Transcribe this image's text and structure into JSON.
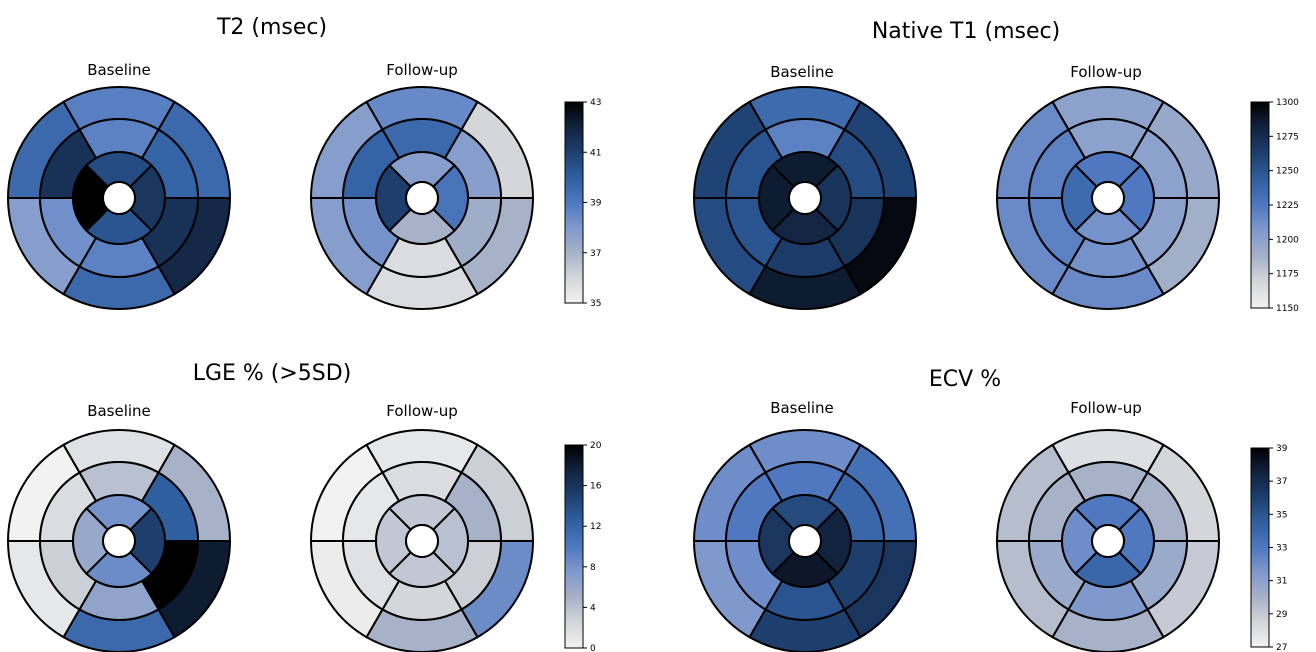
{
  "colors": {
    "scale": [
      "#f2f2f2",
      "#d4d6da",
      "#a7b2c8",
      "#7f99cd",
      "#4f78c0",
      "#2f5f9f",
      "#1e3f6e",
      "#12233f",
      "#000000"
    ],
    "stroke": "#000000",
    "background": "#ffffff"
  },
  "chart_data": [
    {
      "type": "heatmap",
      "subtype": "bullseye-17-segment",
      "title": "T2 (msec)",
      "segment_order": "basal: anterior, anterolateral, inferolateral, inferior, inferoseptal, anteroseptal; mid: same order; apical: anterior, lateral, inferior, septal",
      "colorbar": {
        "ticks": [
          35,
          37,
          39,
          41,
          43
        ],
        "range": [
          35,
          43
        ]
      },
      "maps": [
        {
          "label": "Baseline",
          "basal": [
            38.8,
            39.6,
            41.8,
            39.6,
            37.8,
            39.6
          ],
          "mid": [
            38.7,
            39.8,
            41.5,
            38.7,
            38.3,
            41.5
          ],
          "apical": [
            40.6,
            41.3,
            40.3,
            43.0
          ]
        },
        {
          "label": "Follow-up",
          "basal": [
            38.5,
            36.0,
            37.0,
            35.8,
            37.8,
            37.8
          ],
          "mid": [
            39.6,
            37.8,
            37.2,
            35.8,
            38.2,
            39.8
          ],
          "apical": [
            37.8,
            39.2,
            37.0,
            41.0
          ]
        }
      ]
    },
    {
      "type": "heatmap",
      "subtype": "bullseye-17-segment",
      "title": "Native T1 (msec)",
      "segment_order": "basal: anterior, anterolateral, inferolateral, inferior, inferoseptal, anteroseptal; mid: same order; apical: anterior, lateral, inferior, septal",
      "colorbar": {
        "ticks": [
          1150,
          1175,
          1200,
          1225,
          1250,
          1275,
          1300
        ],
        "range": [
          1150,
          1300
        ]
      },
      "maps": [
        {
          "label": "Baseline",
          "basal": [
            1235,
            1260,
            1295,
            1285,
            1255,
            1260
          ],
          "mid": [
            1220,
            1255,
            1270,
            1265,
            1250,
            1250
          ],
          "apical": [
            1285,
            1270,
            1280,
            1285
          ]
        },
        {
          "label": "Follow-up",
          "basal": [
            1200,
            1195,
            1190,
            1215,
            1215,
            1215
          ],
          "mid": [
            1200,
            1200,
            1200,
            1210,
            1220,
            1220
          ],
          "apical": [
            1225,
            1225,
            1210,
            1235
          ]
        }
      ]
    },
    {
      "type": "heatmap",
      "subtype": "bullseye-17-segment",
      "title": "LGE % (>5SD)",
      "segment_order": "basal: anterior, anterolateral, inferolateral, inferior, inferoseptal, anteroseptal; mid: same order; apical: anterior, lateral, inferior, septal",
      "colorbar": {
        "ticks": [
          0,
          4,
          8,
          12,
          16,
          20
        ],
        "range": [
          0,
          20
        ]
      },
      "maps": [
        {
          "label": "Baseline",
          "basal": [
            1.5,
            5.0,
            18.0,
            11.5,
            1.0,
            0.0
          ],
          "mid": [
            4.0,
            12.5,
            20.0,
            6.5,
            3.0,
            2.0
          ],
          "apical": [
            8.0,
            15.0,
            8.5,
            6.0
          ]
        },
        {
          "label": "Follow-up",
          "basal": [
            1.0,
            3.0,
            8.5,
            5.0,
            0.5,
            0.0
          ],
          "mid": [
            2.0,
            5.0,
            3.0,
            2.5,
            1.5,
            1.0
          ],
          "apical": [
            3.5,
            4.0,
            3.5,
            3.5
          ]
        }
      ]
    },
    {
      "type": "heatmap",
      "subtype": "bullseye-17-segment",
      "title": "ECV %",
      "segment_order": "basal: anterior, anterolateral, inferolateral, inferior, inferoseptal, anteroseptal; mid: same order; apical: anterior, lateral, inferior, septal",
      "colorbar": {
        "ticks": [
          27,
          29,
          31,
          33,
          35,
          37,
          39
        ],
        "range": [
          27,
          39
        ]
      },
      "maps": [
        {
          "label": "Baseline",
          "basal": [
            32.0,
            33.5,
            36.5,
            36.0,
            31.5,
            32.0
          ],
          "mid": [
            33.0,
            34.0,
            36.0,
            35.0,
            32.0,
            33.0
          ],
          "apical": [
            35.5,
            37.5,
            38.0,
            36.5
          ]
        },
        {
          "label": "Follow-up",
          "basal": [
            28.0,
            28.5,
            29.0,
            30.0,
            29.5,
            29.5
          ],
          "mid": [
            30.0,
            30.0,
            30.5,
            31.5,
            30.5,
            30.0
          ],
          "apical": [
            33.0,
            33.0,
            34.0,
            32.0
          ]
        }
      ]
    }
  ]
}
